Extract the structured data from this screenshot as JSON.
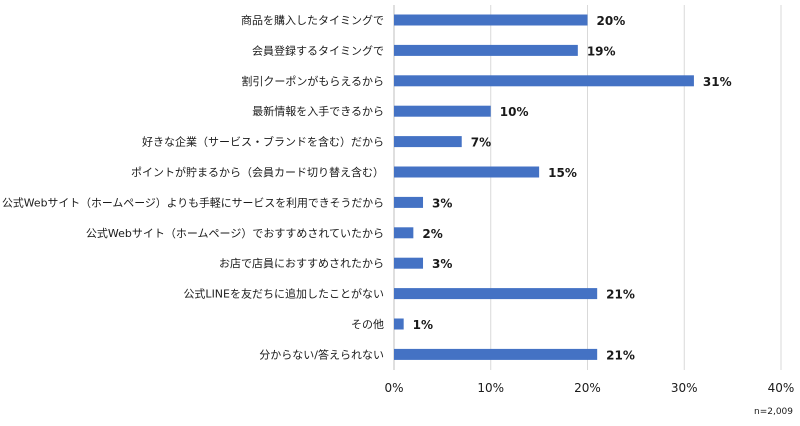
{
  "chart_data": {
    "type": "bar",
    "orientation": "horizontal",
    "categories": [
      "商品を購入したタイミングで",
      "会員登録するタイミングで",
      "割引クーポンがもらえるから",
      "最新情報を入手できるから",
      "好きな企業（サービス・ブランドを含む）だから",
      "ポイントが貯まるから（会員カード切り替え含む）",
      "公式Webサイト（ホームページ）よりも手軽にサービスを利用できそうだから",
      "公式Webサイト（ホームページ）でおすすめされていたから",
      "お店で店員におすすめされたから",
      "公式LINEを友だちに追加したことがない",
      "その他",
      "分からない/答えられない"
    ],
    "values": [
      20,
      19,
      31,
      10,
      7,
      15,
      3,
      2,
      3,
      21,
      1,
      21
    ],
    "value_labels": [
      "20%",
      "19%",
      "31%",
      "10%",
      "7%",
      "15%",
      "3%",
      "2%",
      "3%",
      "21%",
      "1%",
      "21%"
    ],
    "xlim": [
      0,
      40
    ],
    "x_ticks": [
      0,
      10,
      20,
      30,
      40
    ],
    "x_tick_labels": [
      "0%",
      "10%",
      "20%",
      "30%",
      "40%"
    ],
    "grid": true,
    "bar_color": "#4472c4",
    "note": "n=2,009"
  }
}
